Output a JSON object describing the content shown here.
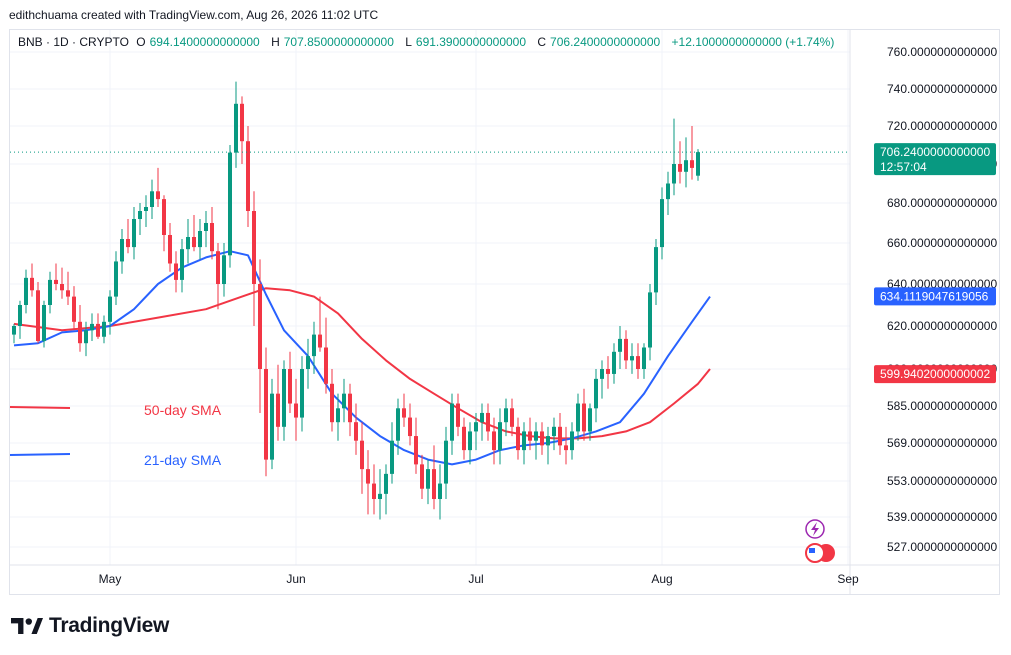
{
  "header": {
    "credit": "edithchuama created with TradingView.com, Aug 26, 2026 11:02 UTC"
  },
  "legend": {
    "symbol": "BNB · 1D · CRYPTO",
    "open_label": "O",
    "open": "694.1400000000000",
    "high_label": "H",
    "high": "707.8500000000000",
    "low_label": "L",
    "low": "691.3900000000000",
    "close_label": "C",
    "close": "706.2400000000000",
    "change": "+12.1000000000000 (+1.74%)"
  },
  "brand": {
    "name": "TradingView"
  },
  "colors": {
    "up": "#089981",
    "down": "#f23645",
    "sma50": "#f23645",
    "sma21": "#2962ff",
    "current_tag": "#089981",
    "sma21_tag": "#2962ff",
    "sma50_tag": "#f23645"
  },
  "chart_data": {
    "type": "candlestick",
    "symbol": "BNB · 1D · CRYPTO",
    "ylim": [
      519,
      766
    ],
    "yticks": [
      760,
      740,
      720,
      700,
      680,
      660,
      640,
      620,
      600,
      585,
      569,
      553,
      539,
      527
    ],
    "ytick_labels": [
      "760.0000000000000",
      "740.0000000000000",
      "720.0000000000000",
      "700.0000000000000",
      "680.0000000000000",
      "660.0000000000000",
      "640.0000000000000",
      "620.0000000000000",
      "600.0000000000000",
      "585.0000000000000",
      "569.0000000000000",
      "553.0000000000000",
      "539.0000000000000",
      "527.0000000000000"
    ],
    "xtick_labels": [
      "May",
      "Jun",
      "Jul",
      "Aug",
      "Sep"
    ],
    "xtick_index": [
      16,
      47,
      77,
      108,
      139
    ],
    "current_price": {
      "value": 706.24,
      "label": "706.2400000000000",
      "countdown": "12:57:04"
    },
    "sma21_last": {
      "value": 634.11,
      "label": "634.1119047619056"
    },
    "sma50_last": {
      "value": 599.94,
      "label": "599.9402000000002"
    },
    "legend_entries": [
      {
        "name": "50-day SMA",
        "color": "#f23645"
      },
      {
        "name": "21-day SMA",
        "color": "#2962ff"
      }
    ],
    "candles": [
      [
        616,
        621,
        612,
        620
      ],
      [
        620,
        632,
        614,
        630
      ],
      [
        630,
        647,
        626,
        643
      ],
      [
        643,
        650,
        634,
        637
      ],
      [
        637,
        641,
        612,
        613
      ],
      [
        613,
        632,
        610,
        630
      ],
      [
        630,
        646,
        626,
        642
      ],
      [
        642,
        650,
        637,
        640
      ],
      [
        640,
        648,
        633,
        637
      ],
      [
        637,
        646,
        630,
        634
      ],
      [
        634,
        639,
        618,
        622
      ],
      [
        622,
        630,
        608,
        612
      ],
      [
        612,
        622,
        606,
        618
      ],
      [
        618,
        626,
        613,
        621
      ],
      [
        621,
        626,
        614,
        615
      ],
      [
        615,
        625,
        612,
        622
      ],
      [
        622,
        637,
        616,
        634
      ],
      [
        634,
        656,
        630,
        651
      ],
      [
        651,
        667,
        645,
        662
      ],
      [
        662,
        672,
        655,
        658
      ],
      [
        658,
        678,
        652,
        672
      ],
      [
        672,
        680,
        664,
        676
      ],
      [
        676,
        684,
        668,
        678
      ],
      [
        678,
        692,
        672,
        686
      ],
      [
        686,
        698,
        678,
        682
      ],
      [
        682,
        684,
        656,
        664
      ],
      [
        664,
        670,
        646,
        650
      ],
      [
        650,
        656,
        636,
        642
      ],
      [
        642,
        662,
        636,
        657
      ],
      [
        657,
        672,
        650,
        663
      ],
      [
        663,
        674,
        656,
        658
      ],
      [
        658,
        672,
        652,
        666
      ],
      [
        666,
        676,
        658,
        670
      ],
      [
        670,
        678,
        652,
        656
      ],
      [
        656,
        660,
        628,
        640
      ],
      [
        640,
        660,
        634,
        654
      ],
      [
        654,
        710,
        648,
        706
      ],
      [
        706,
        744,
        698,
        732
      ],
      [
        732,
        736,
        700,
        712
      ],
      [
        712,
        720,
        668,
        676
      ],
      [
        676,
        686,
        620,
        640
      ],
      [
        640,
        652,
        582,
        600
      ],
      [
        600,
        610,
        555,
        562
      ],
      [
        562,
        596,
        558,
        590
      ],
      [
        590,
        602,
        570,
        576
      ],
      [
        576,
        604,
        570,
        600
      ],
      [
        600,
        608,
        582,
        586
      ],
      [
        586,
        596,
        570,
        580
      ],
      [
        580,
        606,
        574,
        600
      ],
      [
        600,
        614,
        592,
        606
      ],
      [
        606,
        622,
        598,
        616
      ],
      [
        616,
        634,
        608,
        610
      ],
      [
        610,
        624,
        590,
        594
      ],
      [
        594,
        600,
        574,
        578
      ],
      [
        578,
        590,
        570,
        584
      ],
      [
        584,
        596,
        578,
        590
      ],
      [
        590,
        594,
        572,
        578
      ],
      [
        578,
        586,
        564,
        570
      ],
      [
        570,
        578,
        548,
        558
      ],
      [
        558,
        566,
        540,
        552
      ],
      [
        552,
        560,
        540,
        546
      ],
      [
        546,
        558,
        538,
        548
      ],
      [
        548,
        560,
        540,
        556
      ],
      [
        556,
        578,
        552,
        570
      ],
      [
        570,
        588,
        564,
        584
      ],
      [
        584,
        590,
        576,
        580
      ],
      [
        580,
        586,
        568,
        572
      ],
      [
        572,
        580,
        556,
        560
      ],
      [
        560,
        564,
        546,
        550
      ],
      [
        550,
        562,
        544,
        558
      ],
      [
        558,
        568,
        542,
        546
      ],
      [
        546,
        560,
        538,
        552
      ],
      [
        552,
        576,
        546,
        570
      ],
      [
        570,
        590,
        564,
        586
      ],
      [
        586,
        590,
        572,
        576
      ],
      [
        576,
        580,
        562,
        566
      ],
      [
        566,
        578,
        560,
        574
      ],
      [
        574,
        582,
        566,
        578
      ],
      [
        578,
        586,
        570,
        582
      ],
      [
        582,
        586,
        570,
        574
      ],
      [
        574,
        580,
        560,
        566
      ],
      [
        566,
        584,
        560,
        578
      ],
      [
        578,
        588,
        572,
        584
      ],
      [
        584,
        588,
        572,
        576
      ],
      [
        576,
        580,
        562,
        566
      ],
      [
        566,
        578,
        560,
        574
      ],
      [
        574,
        580,
        566,
        570
      ],
      [
        570,
        578,
        562,
        574
      ],
      [
        574,
        578,
        564,
        568
      ],
      [
        568,
        576,
        560,
        572
      ],
      [
        572,
        580,
        566,
        576
      ],
      [
        576,
        582,
        564,
        568
      ],
      [
        568,
        576,
        560,
        566
      ],
      [
        566,
        578,
        562,
        574
      ],
      [
        574,
        590,
        570,
        586
      ],
      [
        586,
        592,
        570,
        574
      ],
      [
        574,
        586,
        570,
        584
      ],
      [
        584,
        600,
        578,
        596
      ],
      [
        596,
        604,
        588,
        600
      ],
      [
        600,
        606,
        592,
        598
      ],
      [
        598,
        612,
        594,
        608
      ],
      [
        608,
        620,
        600,
        614
      ],
      [
        614,
        618,
        600,
        604
      ],
      [
        604,
        612,
        598,
        606
      ],
      [
        606,
        612,
        596,
        600
      ],
      [
        600,
        612,
        596,
        610
      ],
      [
        610,
        640,
        604,
        636
      ],
      [
        636,
        662,
        630,
        658
      ],
      [
        658,
        688,
        652,
        682
      ],
      [
        682,
        696,
        674,
        690
      ],
      [
        690,
        724,
        684,
        700
      ],
      [
        700,
        712,
        690,
        696
      ],
      [
        696,
        714,
        688,
        702
      ],
      [
        702,
        720,
        692,
        698
      ],
      [
        694,
        707.85,
        691.39,
        706.24
      ]
    ],
    "sma21": [
      [
        0,
        611
      ],
      [
        4,
        612
      ],
      [
        8,
        617
      ],
      [
        12,
        618
      ],
      [
        16,
        620
      ],
      [
        20,
        628
      ],
      [
        24,
        640
      ],
      [
        28,
        648
      ],
      [
        32,
        653
      ],
      [
        36,
        656
      ],
      [
        39,
        654
      ],
      [
        42,
        635
      ],
      [
        45,
        618
      ],
      [
        49,
        606
      ],
      [
        53,
        590
      ],
      [
        57,
        580
      ],
      [
        61,
        572
      ],
      [
        65,
        566
      ],
      [
        69,
        562
      ],
      [
        73,
        560
      ],
      [
        77,
        562
      ],
      [
        81,
        566
      ],
      [
        85,
        568
      ],
      [
        89,
        569
      ],
      [
        93,
        571
      ],
      [
        97,
        574
      ],
      [
        101,
        578
      ],
      [
        105,
        590
      ],
      [
        109,
        606
      ],
      [
        113,
        622
      ],
      [
        116,
        634
      ]
    ],
    "sma50": [
      [
        0,
        621
      ],
      [
        8,
        618
      ],
      [
        16,
        620
      ],
      [
        24,
        624
      ],
      [
        32,
        628
      ],
      [
        38,
        634
      ],
      [
        42,
        638
      ],
      [
        46,
        637
      ],
      [
        50,
        634
      ],
      [
        54,
        626
      ],
      [
        58,
        614
      ],
      [
        62,
        604
      ],
      [
        66,
        596
      ],
      [
        70,
        590
      ],
      [
        74,
        584
      ],
      [
        78,
        578
      ],
      [
        82,
        574
      ],
      [
        86,
        572
      ],
      [
        90,
        571
      ],
      [
        94,
        571
      ],
      [
        98,
        572
      ],
      [
        102,
        574
      ],
      [
        106,
        578
      ],
      [
        110,
        586
      ],
      [
        114,
        594
      ],
      [
        116,
        600
      ]
    ]
  }
}
